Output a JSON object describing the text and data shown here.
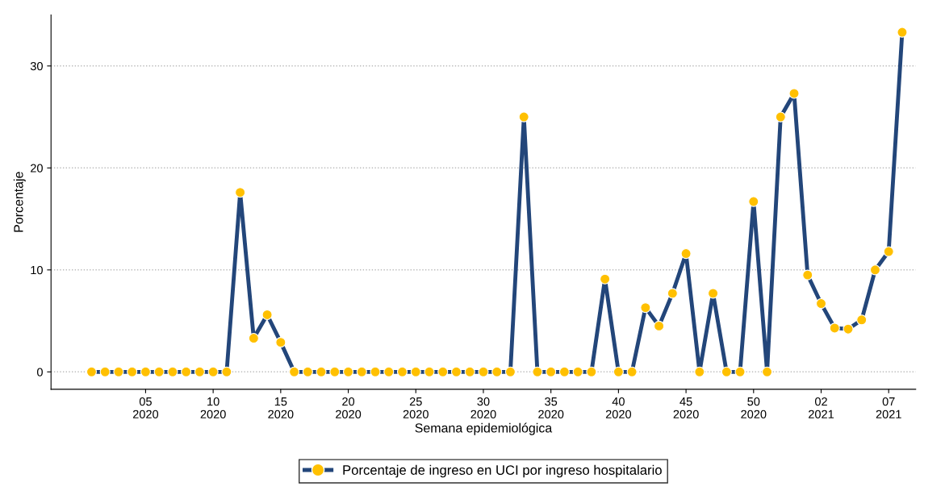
{
  "chart_data": {
    "type": "line",
    "xlabel": "Semana epidemiológica",
    "ylabel": "Porcentaje",
    "categories": [
      null,
      null,
      null,
      null,
      "05\n2020",
      null,
      null,
      null,
      null,
      "10\n2020",
      null,
      null,
      null,
      null,
      "15\n2020",
      null,
      null,
      null,
      null,
      "20\n2020",
      null,
      null,
      null,
      null,
      "25\n2020",
      null,
      null,
      null,
      null,
      "30\n2020",
      null,
      null,
      null,
      null,
      "35\n2020",
      null,
      null,
      null,
      null,
      "40\n2020",
      null,
      null,
      null,
      null,
      "45\n2020",
      null,
      null,
      null,
      null,
      "50\n2020",
      null,
      null,
      null,
      null,
      "02\n2021",
      null,
      null,
      null,
      null,
      "07\n2021",
      null
    ],
    "series": [
      {
        "name": "Porcentaje de ingreso en UCI por ingreso hospitalario",
        "color": "#23467a",
        "colors": [
          "#ffc000",
          "#ffc000",
          "#ffc000",
          "#ffc000",
          "#ffc000",
          "#ffc000",
          "#ffc000",
          "#ffc000",
          "#ffc000",
          "#ffc000",
          "#ffc000",
          "#ffc000",
          "#ffc000",
          "#ffc000",
          "#ffc000",
          "#ffc000",
          "#ffc000",
          "#ffc000",
          "#ffc000",
          "#ffc000",
          "#ffc000",
          "#ffc000",
          "#ffc000",
          "#ffc000",
          "#ffc000",
          "#ffc000",
          "#ffc000",
          "#ffc000",
          "#ffc000",
          "#ffc000",
          "#ffc000",
          "#ffc000",
          "#ffc000",
          "#ffc000",
          "#ffc000",
          "#ffc000",
          "#ffc000",
          "#ffc000",
          "#ffc000",
          "#ffc000",
          "#ffc000",
          "#ffc000",
          "#ffc000",
          "#ffc000",
          "#ffc000",
          "#ffc000",
          "#ffc000",
          "#ffc000",
          "#ffc000",
          "#ffc000",
          "#ffc000",
          "#ffc000",
          "#ffc000",
          "#ffc000",
          "#ffc000",
          "#ffc000",
          "#ffc000",
          "#ffc000",
          "#ffc000",
          "#ffc000",
          "#ffc000"
        ],
        "values": [
          0,
          0,
          0,
          0,
          0,
          0,
          0,
          0,
          0,
          0,
          0,
          17.6,
          3.3,
          5.6,
          2.9,
          0,
          0,
          0,
          0,
          0,
          0,
          0,
          0,
          0,
          0,
          0,
          0,
          0,
          0,
          0,
          0,
          0,
          25.0,
          0,
          0,
          0,
          0,
          0,
          9.1,
          0,
          0,
          6.3,
          4.5,
          7.7,
          11.6,
          0,
          7.7,
          0,
          0,
          16.7,
          0,
          25.0,
          27.3,
          9.5,
          6.7,
          4.3,
          4.2,
          5.1,
          10.0,
          11.8,
          33.3
        ]
      }
    ],
    "ylim": [
      -1.7,
      35
    ],
    "yticks": [
      0,
      10,
      20,
      30
    ],
    "grid": "y",
    "legend": "bottom",
    "marker": "circle",
    "line_style": "solid"
  }
}
